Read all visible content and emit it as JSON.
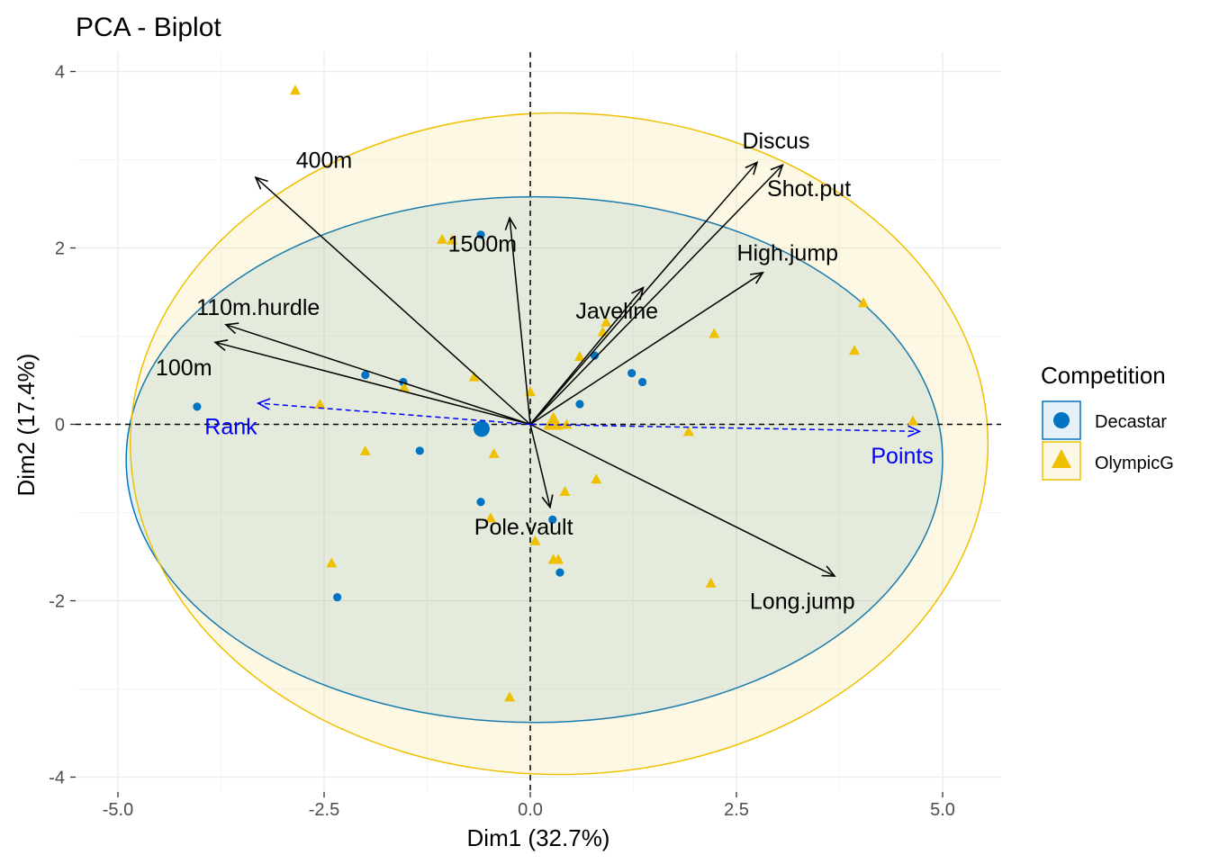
{
  "colors": {
    "Decastar": "#0073C2",
    "OlympicG": "#EFC000",
    "supp": "#0000FF",
    "arrow": "#000000",
    "grid_major": "#ebebeb",
    "grid_minor": "#f5f5f5"
  },
  "chart_data": {
    "type": "scatter",
    "title": "PCA - Biplot",
    "xlabel": "Dim1 (32.7%)",
    "ylabel": "Dim2 (17.4%)",
    "xlim": [
      -5.5,
      5.7
    ],
    "ylim": [
      -4.1,
      4.1
    ],
    "x_ticks": [
      -5,
      -2.5,
      0,
      2.5,
      5
    ],
    "x_tick_labels": [
      "-5.0",
      "-2.5",
      "0.0",
      "2.5",
      "5.0"
    ],
    "y_ticks": [
      -4,
      -2,
      0,
      2,
      4
    ],
    "y_tick_labels": [
      "-4",
      "-2",
      "0",
      "2",
      "4"
    ],
    "grid": true,
    "legend": {
      "title": "Competition",
      "placement": "right",
      "items": [
        {
          "label": "Decastar",
          "shape": "circle"
        },
        {
          "label": "OlympicG",
          "shape": "triangle"
        }
      ]
    },
    "series": [
      {
        "name": "Decastar",
        "shape": "circle",
        "points": [
          [
            -4.04,
            0.2
          ],
          [
            -2.0,
            0.56
          ],
          [
            -1.54,
            0.48
          ],
          [
            -1.34,
            -0.3
          ],
          [
            -0.6,
            2.15
          ],
          [
            -0.6,
            -0.88
          ],
          [
            0.27,
            -1.08
          ],
          [
            0.36,
            -1.68
          ],
          [
            0.6,
            0.23
          ],
          [
            0.78,
            0.78
          ],
          [
            1.23,
            0.58
          ],
          [
            1.36,
            0.48
          ],
          [
            -2.34,
            -1.96
          ]
        ],
        "centroid": [
          -0.59,
          -0.05
        ],
        "ellipse": {
          "cx": 0.05,
          "cy": -0.4,
          "rx": 4.95,
          "ry": 2.98,
          "angle_deg": 0
        }
      },
      {
        "name": "OlympicG",
        "shape": "triangle",
        "points": [
          [
            -2.85,
            3.79
          ],
          [
            -1.07,
            2.1
          ],
          [
            -0.95,
            2.09
          ],
          [
            -0.68,
            0.54
          ],
          [
            -2.55,
            0.23
          ],
          [
            -1.53,
            0.42
          ],
          [
            -2.0,
            -0.3
          ],
          [
            -0.44,
            -0.33
          ],
          [
            -0.48,
            -1.06
          ],
          [
            0.0,
            0.37
          ],
          [
            0.42,
            -0.76
          ],
          [
            0.28,
            -1.53
          ],
          [
            0.34,
            -1.53
          ],
          [
            0.06,
            -1.32
          ],
          [
            0.8,
            -0.62
          ],
          [
            0.6,
            0.77
          ],
          [
            0.88,
            1.05
          ],
          [
            0.92,
            1.16
          ],
          [
            1.92,
            -0.08
          ],
          [
            2.23,
            1.03
          ],
          [
            2.19,
            -1.8
          ],
          [
            3.93,
            0.84
          ],
          [
            4.04,
            1.38
          ],
          [
            4.64,
            0.04
          ],
          [
            -2.41,
            -1.57
          ],
          [
            -0.25,
            -3.09
          ],
          [
            0.44,
            0.0
          ]
        ],
        "centroid": [
          0.28,
          0.03
        ],
        "ellipse": {
          "cx": 0.35,
          "cy": -0.22,
          "rx": 5.2,
          "ry": 3.75,
          "angle_deg": 0
        }
      }
    ],
    "variables": [
      {
        "name": "100m",
        "x": -3.82,
        "y": 0.93,
        "label_x": -4.2,
        "label_y": 0.65
      },
      {
        "name": "110m.hurdle",
        "x": -3.69,
        "y": 1.13,
        "label_x": -3.3,
        "label_y": 1.33
      },
      {
        "name": "400m",
        "x": -3.33,
        "y": 2.8,
        "label_x": -2.5,
        "label_y": 3.0
      },
      {
        "name": "1500m",
        "x": -0.25,
        "y": 2.34,
        "label_x": -0.58,
        "label_y": 2.05
      },
      {
        "name": "Javeline",
        "x": 1.37,
        "y": 1.55,
        "label_x": 1.05,
        "label_y": 1.29
      },
      {
        "name": "Discus",
        "x": 2.75,
        "y": 2.97,
        "label_x": 2.98,
        "label_y": 3.22
      },
      {
        "name": "Shot.put",
        "x": 3.06,
        "y": 2.94,
        "label_x": 3.38,
        "label_y": 2.68
      },
      {
        "name": "High.jump",
        "x": 2.82,
        "y": 1.72,
        "label_x": 3.12,
        "label_y": 1.95
      },
      {
        "name": "Long.jump",
        "x": 3.69,
        "y": -1.72,
        "label_x": 3.3,
        "label_y": -2.0
      },
      {
        "name": "Pole.vault",
        "x": 0.24,
        "y": -0.94,
        "label_x": -0.08,
        "label_y": -1.16
      }
    ],
    "supplementary": [
      {
        "name": "Rank",
        "x": -3.3,
        "y": 0.24,
        "label_x": -3.63,
        "label_y": -0.02
      },
      {
        "name": "Points",
        "x": 4.72,
        "y": -0.08,
        "label_x": 4.51,
        "label_y": -0.35
      }
    ]
  }
}
